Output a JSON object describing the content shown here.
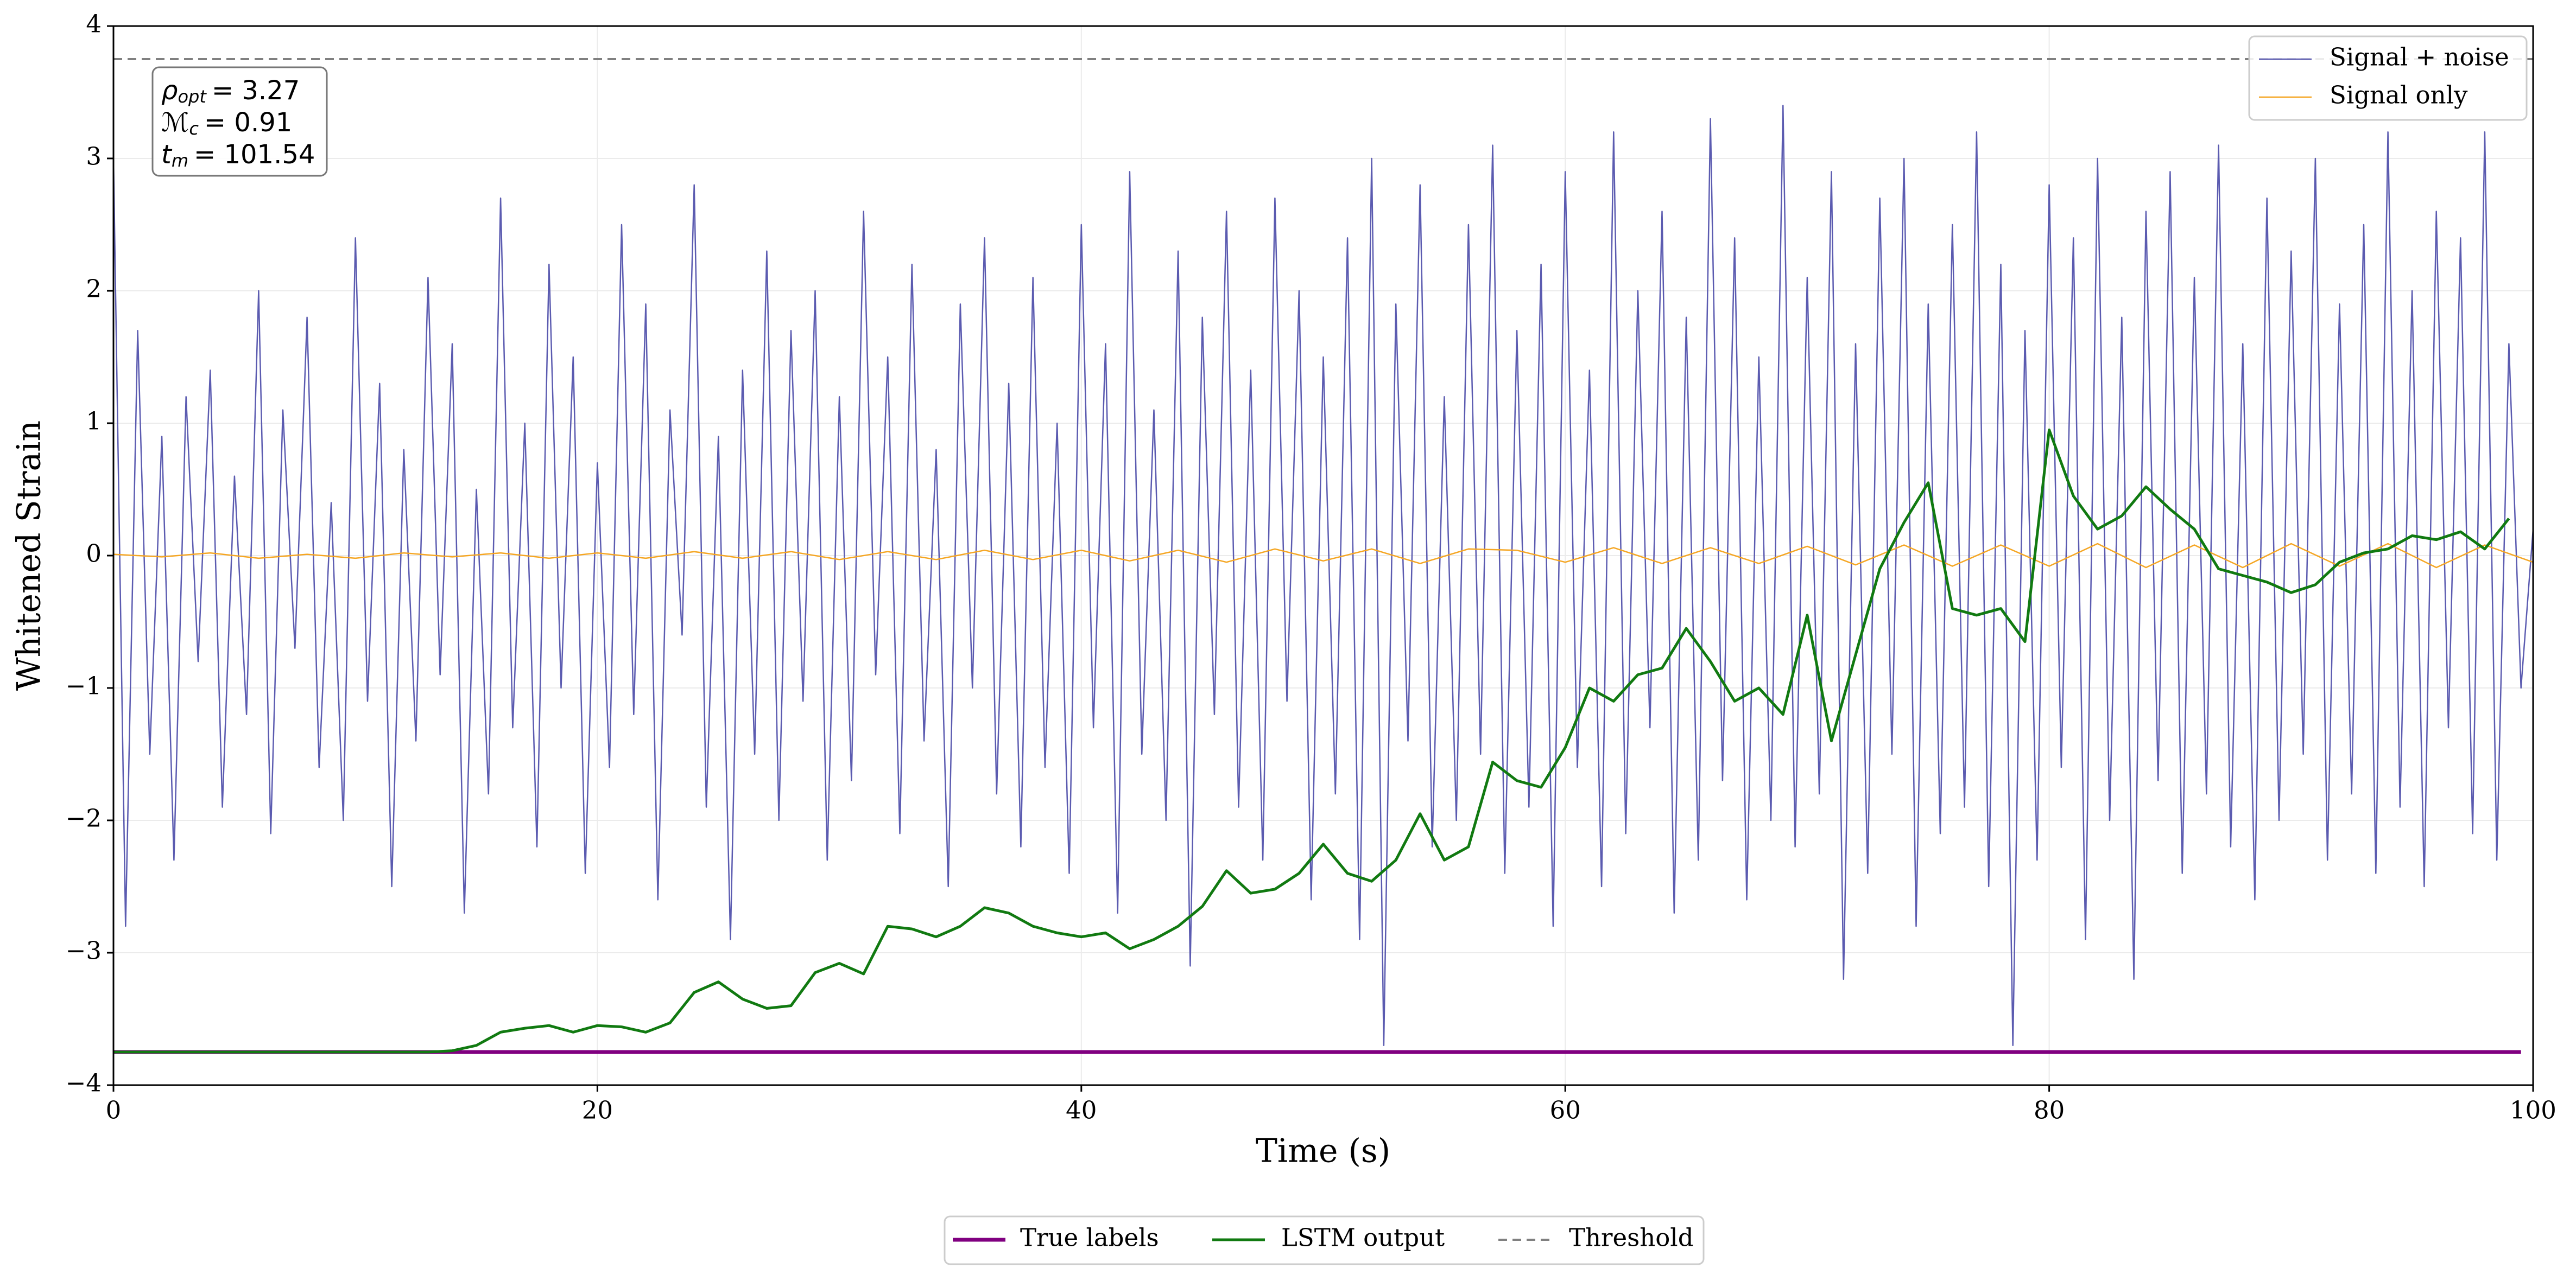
{
  "chart_data": {
    "type": "line",
    "xlabel": "Time (s)",
    "ylabel": "Whitened Strain",
    "xlim": [
      0,
      100
    ],
    "ylim": [
      -4,
      4
    ],
    "xticks": [
      0,
      20,
      40,
      60,
      80,
      100
    ],
    "yticks": [
      {
        "value": -4,
        "label": "−4"
      },
      {
        "value": -3,
        "label": "−3"
      },
      {
        "value": -2,
        "label": "−2"
      },
      {
        "value": -1,
        "label": "−1"
      },
      0,
      1,
      2,
      3,
      4
    ],
    "grid": true,
    "annotations": [
      {
        "symbol": "ρ",
        "sub": "opt",
        "text": "= 3.27"
      },
      {
        "symbol": "ℳ",
        "sub": "c",
        "text": "= 0.91"
      },
      {
        "symbol": "t",
        "sub": "m",
        "text": "= 101.54"
      }
    ],
    "series": [
      {
        "name": "Signal + noise",
        "color": "#5b5bb0",
        "width": 2.5,
        "legend": "upper right",
        "x": [
          0,
          0.5,
          1,
          1.5,
          2,
          2.5,
          3,
          3.5,
          4,
          4.5,
          5,
          5.5,
          6,
          6.5,
          7,
          7.5,
          8,
          8.5,
          9,
          9.5,
          10,
          10.5,
          11,
          11.5,
          12,
          12.5,
          13,
          13.5,
          14,
          14.5,
          15,
          15.5,
          16,
          16.5,
          17,
          17.5,
          18,
          18.5,
          19,
          19.5,
          20,
          20.5,
          21,
          21.5,
          22,
          22.5,
          23,
          23.5,
          24,
          24.5,
          25,
          25.5,
          26,
          26.5,
          27,
          27.5,
          28,
          28.5,
          29,
          29.5,
          30,
          30.5,
          31,
          31.5,
          32,
          32.5,
          33,
          33.5,
          34,
          34.5,
          35,
          35.5,
          36,
          36.5,
          37,
          37.5,
          38,
          38.5,
          39,
          39.5,
          40,
          40.5,
          41,
          41.5,
          42,
          42.5,
          43,
          43.5,
          44,
          44.5,
          45,
          45.5,
          46,
          46.5,
          47,
          47.5,
          48,
          48.5,
          49,
          49.5,
          50,
          50.5,
          51,
          51.5,
          52,
          52.5,
          53,
          53.5,
          54,
          54.5,
          55,
          55.5,
          56,
          56.5,
          57,
          57.5,
          58,
          58.5,
          59,
          59.5,
          60,
          60.5,
          61,
          61.5,
          62,
          62.5,
          63,
          63.5,
          64,
          64.5,
          65,
          65.5,
          66,
          66.5,
          67,
          67.5,
          68,
          68.5,
          69,
          69.5,
          70,
          70.5,
          71,
          71.5,
          72,
          72.5,
          73,
          73.5,
          74,
          74.5,
          75,
          75.5,
          76,
          76.5,
          77,
          77.5,
          78,
          78.5,
          79,
          79.5,
          80,
          80.5,
          81,
          81.5,
          82,
          82.5,
          83,
          83.5,
          84,
          84.5,
          85,
          85.5,
          86,
          86.5,
          87,
          87.5,
          88,
          88.5,
          89,
          89.5,
          90,
          90.5,
          91,
          91.5,
          92,
          92.5,
          93,
          93.5,
          94,
          94.5,
          95,
          95.5,
          96,
          96.5,
          97,
          97.5,
          98,
          98.5,
          99,
          99.5,
          100
        ],
        "values": [
          3.0,
          -2.8,
          1.7,
          -1.5,
          0.9,
          -2.3,
          1.2,
          -0.8,
          1.4,
          -1.9,
          0.6,
          -1.2,
          2.0,
          -2.1,
          1.1,
          -0.7,
          1.8,
          -1.6,
          0.4,
          -2.0,
          2.4,
          -1.1,
          1.3,
          -2.5,
          0.8,
          -1.4,
          2.1,
          -0.9,
          1.6,
          -2.7,
          0.5,
          -1.8,
          2.7,
          -1.3,
          1.0,
          -2.2,
          2.2,
          -1.0,
          1.5,
          -2.4,
          0.7,
          -1.6,
          2.5,
          -1.2,
          1.9,
          -2.6,
          1.1,
          -0.6,
          2.8,
          -1.9,
          0.9,
          -2.9,
          1.4,
          -1.5,
          2.3,
          -2.0,
          1.7,
          -1.1,
          2.0,
          -2.3,
          1.2,
          -1.7,
          2.6,
          -0.9,
          1.5,
          -2.1,
          2.2,
          -1.4,
          0.8,
          -2.5,
          1.9,
          -1.0,
          2.4,
          -1.8,
          1.3,
          -2.2,
          2.1,
          -1.6,
          1.0,
          -2.4,
          2.5,
          -1.3,
          1.6,
          -2.7,
          2.9,
          -1.5,
          1.1,
          -2.0,
          2.3,
          -3.1,
          1.8,
          -1.2,
          2.6,
          -1.9,
          1.4,
          -2.3,
          2.7,
          -1.1,
          2.0,
          -2.6,
          1.5,
          -1.8,
          2.4,
          -2.9,
          3.0,
          -3.7,
          1.9,
          -1.4,
          2.8,
          -2.2,
          1.2,
          -2.0,
          2.5,
          -1.5,
          3.1,
          -2.4,
          1.7,
          -1.9,
          2.2,
          -2.8,
          2.9,
          -1.6,
          1.4,
          -2.5,
          3.2,
          -2.1,
          2.0,
          -1.3,
          2.6,
          -2.7,
          1.8,
          -2.3,
          3.3,
          -1.7,
          2.4,
          -2.6,
          1.5,
          -2.0,
          3.4,
          -2.2,
          2.1,
          -1.8,
          2.9,
          -3.2,
          1.6,
          -2.4,
          2.7,
          -1.5,
          3.0,
          -2.8,
          1.9,
          -2.1,
          2.5,
          -1.9,
          3.2,
          -2.5,
          2.2,
          -3.7,
          1.7,
          -2.3,
          2.8,
          -1.6,
          2.4,
          -2.9,
          3.0,
          -2.0,
          1.8,
          -3.2,
          2.6,
          -1.7,
          2.9,
          -2.4,
          2.1,
          -1.8,
          3.1,
          -2.2,
          1.6,
          -2.6,
          2.7,
          -2.0,
          2.3,
          -1.5,
          3.0,
          -2.3,
          1.9,
          -1.8,
          2.5,
          -2.4,
          3.2,
          -1.9,
          2.0,
          -2.5,
          2.6,
          -1.3,
          2.4,
          -2.1,
          3.2,
          -2.3,
          1.6,
          -1.0,
          0.2
        ]
      },
      {
        "name": "Signal only",
        "color": "#f5a623",
        "width": 2.5,
        "legend": "upper right",
        "x": [
          0,
          2,
          4,
          6,
          8,
          10,
          12,
          14,
          16,
          18,
          20,
          22,
          24,
          26,
          28,
          30,
          32,
          34,
          36,
          38,
          40,
          42,
          44,
          46,
          48,
          50,
          52,
          54,
          56,
          58,
          60,
          62,
          64,
          66,
          68,
          70,
          72,
          74,
          76,
          78,
          80,
          82,
          84,
          86,
          88,
          90,
          92,
          94,
          96,
          98,
          100
        ],
        "values": [
          0.01,
          -0.01,
          0.02,
          -0.02,
          0.01,
          -0.02,
          0.02,
          -0.01,
          0.02,
          -0.02,
          0.02,
          -0.02,
          0.03,
          -0.02,
          0.03,
          -0.03,
          0.03,
          -0.03,
          0.04,
          -0.03,
          0.04,
          -0.04,
          0.04,
          -0.05,
          0.05,
          -0.04,
          0.05,
          -0.06,
          0.05,
          0.04,
          -0.05,
          0.06,
          -0.06,
          0.06,
          -0.06,
          0.07,
          -0.07,
          0.08,
          -0.08,
          0.08,
          -0.08,
          0.09,
          -0.09,
          0.08,
          -0.09,
          0.09,
          -0.08,
          0.09,
          -0.09,
          0.08,
          -0.05
        ]
      },
      {
        "name": "True labels",
        "color": "#800080",
        "width": 7,
        "legend": "lower center",
        "x": [
          0,
          99.5
        ],
        "values": [
          -3.75,
          -3.75
        ]
      },
      {
        "name": "LSTM output",
        "color": "#117a11",
        "width": 5,
        "legend": "lower center",
        "x": [
          0,
          1,
          2,
          3,
          4,
          5,
          6,
          7,
          8,
          9,
          10,
          11,
          12,
          13,
          14,
          15,
          16,
          17,
          18,
          19,
          20,
          21,
          22,
          23,
          24,
          25,
          26,
          27,
          28,
          29,
          30,
          31,
          32,
          33,
          34,
          35,
          36,
          37,
          38,
          39,
          40,
          41,
          42,
          43,
          44,
          45,
          46,
          47,
          48,
          49,
          50,
          51,
          52,
          53,
          54,
          55,
          56,
          57,
          58,
          59,
          60,
          61,
          62,
          63,
          64,
          65,
          66,
          67,
          68,
          69,
          70,
          71,
          72,
          73,
          74,
          75,
          76,
          77,
          78,
          79,
          80,
          81,
          82,
          83,
          84,
          85,
          86,
          87,
          88,
          89,
          90,
          91,
          92,
          93,
          94,
          95,
          96,
          97,
          98,
          99
        ],
        "values": [
          -3.75,
          -3.75,
          -3.75,
          -3.75,
          -3.75,
          -3.75,
          -3.75,
          -3.75,
          -3.75,
          -3.75,
          -3.75,
          -3.75,
          -3.75,
          -3.75,
          -3.74,
          -3.7,
          -3.6,
          -3.57,
          -3.55,
          -3.6,
          -3.55,
          -3.56,
          -3.6,
          -3.53,
          -3.3,
          -3.22,
          -3.35,
          -3.42,
          -3.4,
          -3.15,
          -3.08,
          -3.16,
          -2.8,
          -2.82,
          -2.88,
          -2.8,
          -2.66,
          -2.7,
          -2.8,
          -2.85,
          -2.88,
          -2.85,
          -2.97,
          -2.9,
          -2.8,
          -2.65,
          -2.38,
          -2.55,
          -2.52,
          -2.4,
          -2.18,
          -2.4,
          -2.46,
          -2.3,
          -1.95,
          -2.3,
          -2.2,
          -1.56,
          -1.7,
          -1.75,
          -1.45,
          -1.0,
          -1.1,
          -0.9,
          -0.85,
          -0.55,
          -0.8,
          -1.1,
          -1.0,
          -1.2,
          -0.45,
          -1.4,
          -0.75,
          -0.1,
          0.25,
          0.55,
          -0.4,
          -0.45,
          -0.4,
          -0.65,
          0.95,
          0.45,
          0.2,
          0.3,
          0.52,
          0.35,
          0.2,
          -0.1,
          -0.15,
          -0.2,
          -0.28,
          -0.22,
          -0.05,
          0.02,
          0.05,
          0.15,
          0.12,
          0.18,
          0.05,
          0.28
        ]
      },
      {
        "name": "Threshold",
        "color": "#808080",
        "width": 4,
        "linestyle": "dashed",
        "legend": "lower center",
        "x": [
          0,
          100
        ],
        "values": [
          3.75,
          3.75
        ]
      }
    ]
  }
}
